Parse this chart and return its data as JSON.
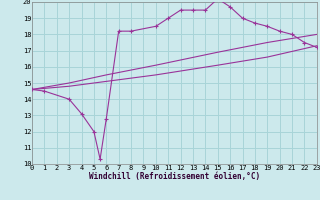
{
  "xlabel": "Windchill (Refroidissement éolien,°C)",
  "bg_color": "#cce9ec",
  "grid_color": "#a8d4d8",
  "line_color": "#993399",
  "xlim": [
    0,
    23
  ],
  "ylim": [
    10,
    20
  ],
  "xticks": [
    0,
    1,
    2,
    3,
    4,
    5,
    6,
    7,
    8,
    9,
    10,
    11,
    12,
    13,
    14,
    15,
    16,
    17,
    18,
    19,
    20,
    21,
    22,
    23
  ],
  "yticks": [
    10,
    11,
    12,
    13,
    14,
    15,
    16,
    17,
    18,
    19,
    20
  ],
  "line1_x": [
    0,
    1,
    3,
    4,
    5,
    5.5,
    6,
    7,
    8,
    10,
    11,
    12,
    13,
    14,
    15,
    16,
    17,
    18,
    19,
    20,
    21,
    22,
    23
  ],
  "line1_y": [
    14.6,
    14.5,
    14.0,
    13.1,
    12.0,
    10.3,
    12.8,
    18.2,
    18.2,
    18.5,
    19.0,
    19.5,
    19.5,
    19.5,
    20.2,
    19.7,
    19.0,
    18.7,
    18.5,
    18.2,
    18.0,
    17.5,
    17.2
  ],
  "line2_x": [
    0,
    3,
    6,
    10,
    15,
    19,
    23
  ],
  "line2_y": [
    14.6,
    14.8,
    15.1,
    15.5,
    16.1,
    16.6,
    17.3
  ],
  "line3_x": [
    0,
    3,
    6,
    10,
    15,
    19,
    23
  ],
  "line3_y": [
    14.6,
    15.0,
    15.5,
    16.1,
    16.9,
    17.5,
    18.0
  ]
}
